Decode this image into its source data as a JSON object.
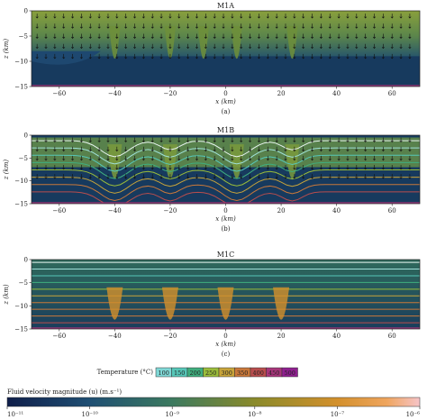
{
  "chart_data": [
    {
      "type": "heatmap",
      "title": "M1A",
      "panel_label": "(a)",
      "xlabel": "x (km)",
      "ylabel": "z (km)",
      "xlim": [
        -70,
        70
      ],
      "ylim": [
        -15,
        0
      ],
      "xticks": [
        -60,
        -40,
        -20,
        0,
        20,
        40,
        60
      ],
      "yticks": [
        0,
        -5,
        -10,
        -15
      ],
      "xtick_labels": [
        "−60",
        "−40",
        "−20",
        "0",
        "20",
        "40",
        "60"
      ],
      "ytick_labels": [
        "0",
        "−5",
        "−10",
        "−15"
      ],
      "downflow_zones_x": [
        -40,
        -20,
        -8,
        4,
        24
      ]
    },
    {
      "type": "heatmap",
      "title": "M1B",
      "panel_label": "(b)",
      "xlabel": "x (km)",
      "ylabel": "z (km)",
      "xlim": [
        -70,
        70
      ],
      "ylim": [
        -15,
        0
      ],
      "xticks": [
        -60,
        -40,
        -20,
        0,
        20,
        40,
        60
      ],
      "yticks": [
        0,
        -5,
        -10,
        -15
      ],
      "xtick_labels": [
        "−60",
        "−40",
        "−20",
        "0",
        "20",
        "40",
        "60"
      ],
      "ytick_labels": [
        "0",
        "−5",
        "−10",
        "−15"
      ],
      "downflow_zones_x": [
        -40,
        -20,
        4,
        24
      ]
    },
    {
      "type": "heatmap",
      "title": "M1C",
      "panel_label": "(c)",
      "xlabel": "x (km)",
      "ylabel": "z (km)",
      "xlim": [
        -70,
        70
      ],
      "ylim": [
        -15,
        0
      ],
      "xticks": [
        -60,
        -40,
        -20,
        0,
        20,
        40,
        60
      ],
      "yticks": [
        0,
        -5,
        -10,
        -15
      ],
      "xtick_labels": [
        "−60",
        "−40",
        "−20",
        "0",
        "20",
        "40",
        "60"
      ],
      "ytick_labels": [
        "0",
        "−5",
        "−10",
        "−15"
      ],
      "downflow_zones_x": [
        -40,
        -20,
        0,
        20
      ]
    }
  ],
  "temperature_legend": {
    "label": "Temperature (°C)",
    "values": [
      "100",
      "150",
      "200",
      "250",
      "300",
      "350",
      "400",
      "450",
      "500"
    ],
    "colors": [
      "#7fd8d6",
      "#56c7b8",
      "#3fae7e",
      "#9bbd3a",
      "#c8a43a",
      "#c9783a",
      "#b84d4d",
      "#a7357a",
      "#8f1f8f"
    ]
  },
  "velocity_colorbar": {
    "label": "Fluid velocity magnitude (u) (m.s⁻¹)",
    "tick_labels": [
      "10⁻¹¹",
      "10⁻¹⁰",
      "10⁻⁹",
      "10⁻⁸",
      "10⁻⁷",
      "10⁻⁶"
    ],
    "tick_exponents": [
      -11,
      -10,
      -9,
      -8,
      -7,
      -6
    ],
    "colors": [
      "#0f1e4a",
      "#1f4f73",
      "#3c7a5f",
      "#8a8a2a",
      "#d3902c",
      "#efa55e",
      "#f6c4c8"
    ]
  }
}
